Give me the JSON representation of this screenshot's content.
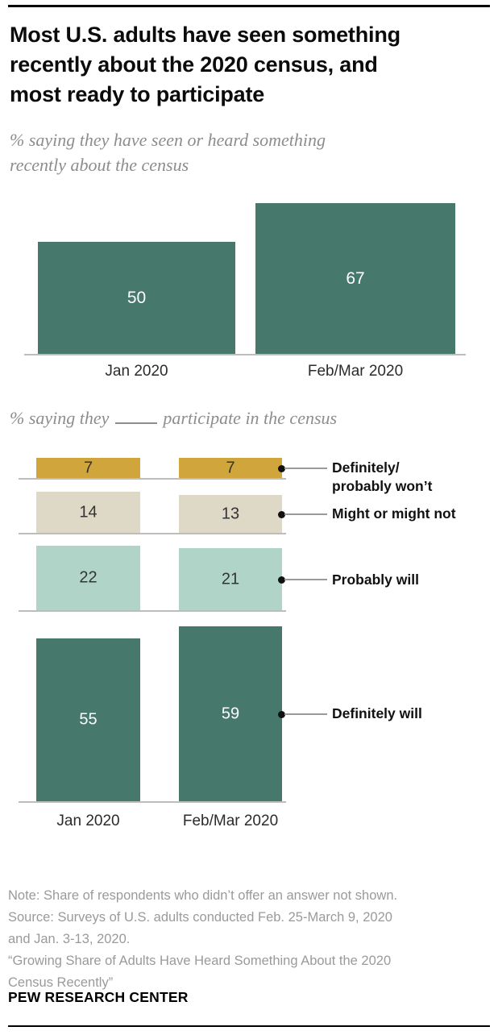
{
  "header": {
    "title_lines": [
      "Most U.S. adults have seen something",
      "recently about the 2020 census, and",
      "most ready to participate"
    ]
  },
  "chart_data": [
    {
      "type": "bar",
      "title": "% saying they have seen or heard something recently about the census",
      "subtitle_lines": [
        "% saying they have seen or heard something",
        "recently about the census"
      ],
      "categories": [
        "Jan 2020",
        "Feb/Mar 2020"
      ],
      "values": [
        50,
        67
      ],
      "ylim": [
        0,
        70
      ],
      "bar_color": "#46786c",
      "value_label_color": "#ffffff",
      "grid": false,
      "legend": "none"
    },
    {
      "type": "bar",
      "title": "% saying they ____ participate in the census",
      "subtitle_prefix": "% saying they",
      "subtitle_suffix": "participate in the census",
      "categories": [
        "Jan 2020",
        "Feb/Mar 2020"
      ],
      "ylim": [
        0,
        60
      ],
      "grid": false,
      "legend": "right-leader-labels",
      "series": [
        {
          "name": "Definitely/probably won’t",
          "label_lines": [
            "Definitely/",
            "probably won’t"
          ],
          "values": [
            7,
            7
          ],
          "color": "#d0a53c",
          "value_label_color": "#333333"
        },
        {
          "name": "Might or might not",
          "label_lines": [
            "Might or might not"
          ],
          "values": [
            14,
            13
          ],
          "color": "#ded9c6",
          "value_label_color": "#333333"
        },
        {
          "name": "Probably will",
          "label_lines": [
            "Probably will"
          ],
          "values": [
            22,
            21
          ],
          "color": "#b1d4c9",
          "value_label_color": "#333333"
        },
        {
          "name": "Definitely will",
          "label_lines": [
            "Definitely will"
          ],
          "values": [
            55,
            59
          ],
          "color": "#46786c",
          "value_label_color": "#ffffff"
        }
      ]
    }
  ],
  "footer": {
    "note_lines": [
      "Note: Share of respondents who didn’t offer an answer not shown.",
      "Source: Surveys of U.S. adults conducted Feb. 25-March 9, 2020",
      "and Jan. 3-13, 2020.",
      "“Growing Share of Adults Have Heard Something About the 2020",
      "Census Recently”"
    ],
    "source_label": "PEW RESEARCH CENTER"
  }
}
